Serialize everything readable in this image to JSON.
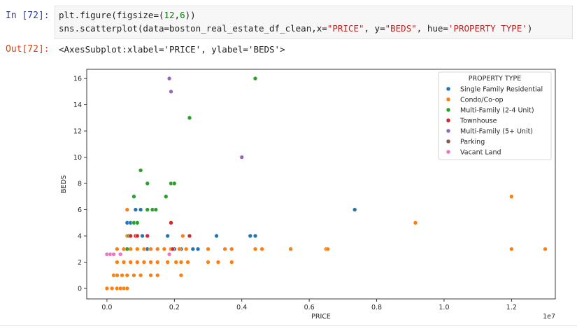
{
  "input_prompt": "In [72]:",
  "output_prompt": "Out[72]:",
  "code": {
    "line1": {
      "fn": "plt.figure(figsize=(",
      "n1": "12",
      "sep": ",",
      "n2": "6",
      "end": "))"
    },
    "line2": {
      "pre": "sns.scatterplot(data=boston_real_estate_df_clean,x=",
      "x": "\"PRICE\"",
      "mid": ", y=",
      "y": "\"BEDS\"",
      "mid2": ", hue=",
      "hue": "'PROPERTY TYPE'",
      "end": ")"
    }
  },
  "output_text": "<AxesSubplot:xlabel='PRICE', ylabel='BEDS'>",
  "chart_data": {
    "type": "scatter",
    "xlabel": "PRICE",
    "ylabel": "BEDS",
    "x_scale_label": "1e7",
    "xlim": [
      -0.06,
      1.33
    ],
    "ylim": [
      -0.8,
      16.7
    ],
    "x_ticks": [
      "0.0",
      "0.2",
      "0.4",
      "0.6",
      "0.8",
      "1.0",
      "1.2"
    ],
    "x_tick_values": [
      0,
      0.2,
      0.4,
      0.6,
      0.8,
      1.0,
      1.2
    ],
    "y_ticks": [
      "0",
      "2",
      "4",
      "6",
      "8",
      "10",
      "12",
      "14",
      "16"
    ],
    "y_tick_values": [
      0,
      2,
      4,
      6,
      8,
      10,
      12,
      14,
      16
    ],
    "grid": false,
    "legend": {
      "title": "PROPERTY TYPE",
      "placement": "top-right"
    },
    "series": [
      {
        "name": "Single Family Residential",
        "color": "#1f77b4",
        "points": [
          [
            0.05,
            2
          ],
          [
            0.07,
            3
          ],
          [
            0.06,
            5
          ],
          [
            0.07,
            5
          ],
          [
            0.08,
            5
          ],
          [
            0.085,
            6
          ],
          [
            0.1,
            6
          ],
          [
            0.12,
            6
          ],
          [
            0.105,
            4
          ],
          [
            0.12,
            3
          ],
          [
            0.18,
            4
          ],
          [
            0.2,
            3
          ],
          [
            0.22,
            3
          ],
          [
            0.255,
            3
          ],
          [
            0.27,
            3
          ],
          [
            0.325,
            4
          ],
          [
            0.425,
            4
          ],
          [
            0.44,
            4
          ],
          [
            0.735,
            6
          ]
        ]
      },
      {
        "name": "Condo/Co-op",
        "color": "#ff7f0e",
        "points": [
          [
            0.0,
            0
          ],
          [
            0.015,
            0
          ],
          [
            0.03,
            0
          ],
          [
            0.04,
            0
          ],
          [
            0.05,
            0
          ],
          [
            0.06,
            0
          ],
          [
            0.02,
            1
          ],
          [
            0.03,
            1
          ],
          [
            0.045,
            1
          ],
          [
            0.06,
            1
          ],
          [
            0.08,
            1
          ],
          [
            0.1,
            1
          ],
          [
            0.13,
            1
          ],
          [
            0.15,
            1
          ],
          [
            0.22,
            1
          ],
          [
            0.03,
            2
          ],
          [
            0.05,
            2
          ],
          [
            0.07,
            2
          ],
          [
            0.09,
            2
          ],
          [
            0.11,
            2
          ],
          [
            0.13,
            2
          ],
          [
            0.15,
            2
          ],
          [
            0.18,
            2
          ],
          [
            0.205,
            2
          ],
          [
            0.22,
            2
          ],
          [
            0.24,
            2
          ],
          [
            0.3,
            2
          ],
          [
            0.33,
            2
          ],
          [
            0.37,
            2
          ],
          [
            0.03,
            3
          ],
          [
            0.05,
            3
          ],
          [
            0.07,
            3
          ],
          [
            0.09,
            3
          ],
          [
            0.11,
            3
          ],
          [
            0.13,
            3
          ],
          [
            0.15,
            3
          ],
          [
            0.17,
            3
          ],
          [
            0.19,
            3
          ],
          [
            0.215,
            3
          ],
          [
            0.235,
            3
          ],
          [
            0.3,
            3
          ],
          [
            0.35,
            3
          ],
          [
            0.37,
            3
          ],
          [
            0.44,
            3
          ],
          [
            0.46,
            3
          ],
          [
            0.545,
            3
          ],
          [
            0.65,
            3
          ],
          [
            0.655,
            3
          ],
          [
            1.2,
            3
          ],
          [
            1.3,
            3
          ],
          [
            0.06,
            4
          ],
          [
            0.085,
            4
          ],
          [
            0.225,
            4
          ],
          [
            0.245,
            4
          ],
          [
            0.915,
            5
          ],
          [
            0.06,
            6
          ],
          [
            1.2,
            7
          ]
        ]
      },
      {
        "name": "Multi-Family (2-4 Unit)",
        "color": "#2ca02c",
        "points": [
          [
            0.06,
            3
          ],
          [
            0.08,
            5
          ],
          [
            0.09,
            5
          ],
          [
            0.065,
            4
          ],
          [
            0.12,
            6
          ],
          [
            0.135,
            6
          ],
          [
            0.145,
            6
          ],
          [
            0.08,
            7
          ],
          [
            0.175,
            7
          ],
          [
            0.12,
            8
          ],
          [
            0.19,
            8
          ],
          [
            0.2,
            8
          ],
          [
            0.1,
            9
          ],
          [
            0.245,
            13
          ],
          [
            0.44,
            16
          ]
        ]
      },
      {
        "name": "Townhouse",
        "color": "#d62728",
        "points": [
          [
            0.07,
            4
          ],
          [
            0.085,
            4
          ],
          [
            0.09,
            4
          ],
          [
            0.12,
            4
          ],
          [
            0.19,
            5
          ],
          [
            0.245,
            4
          ],
          [
            0.195,
            3
          ]
        ]
      },
      {
        "name": "Multi-Family (5+ Unit)",
        "color": "#9467bd",
        "points": [
          [
            0.185,
            16
          ],
          [
            0.19,
            15
          ],
          [
            0.4,
            10
          ]
        ]
      },
      {
        "name": "Parking",
        "color": "#8c564b",
        "points": []
      },
      {
        "name": "Vacant Land",
        "color": "#e377c2",
        "points": [
          [
            0.0,
            2.6
          ],
          [
            0.01,
            2.6
          ],
          [
            0.02,
            2.6
          ],
          [
            0.04,
            2.6
          ],
          [
            0.185,
            2.6
          ]
        ]
      }
    ]
  }
}
